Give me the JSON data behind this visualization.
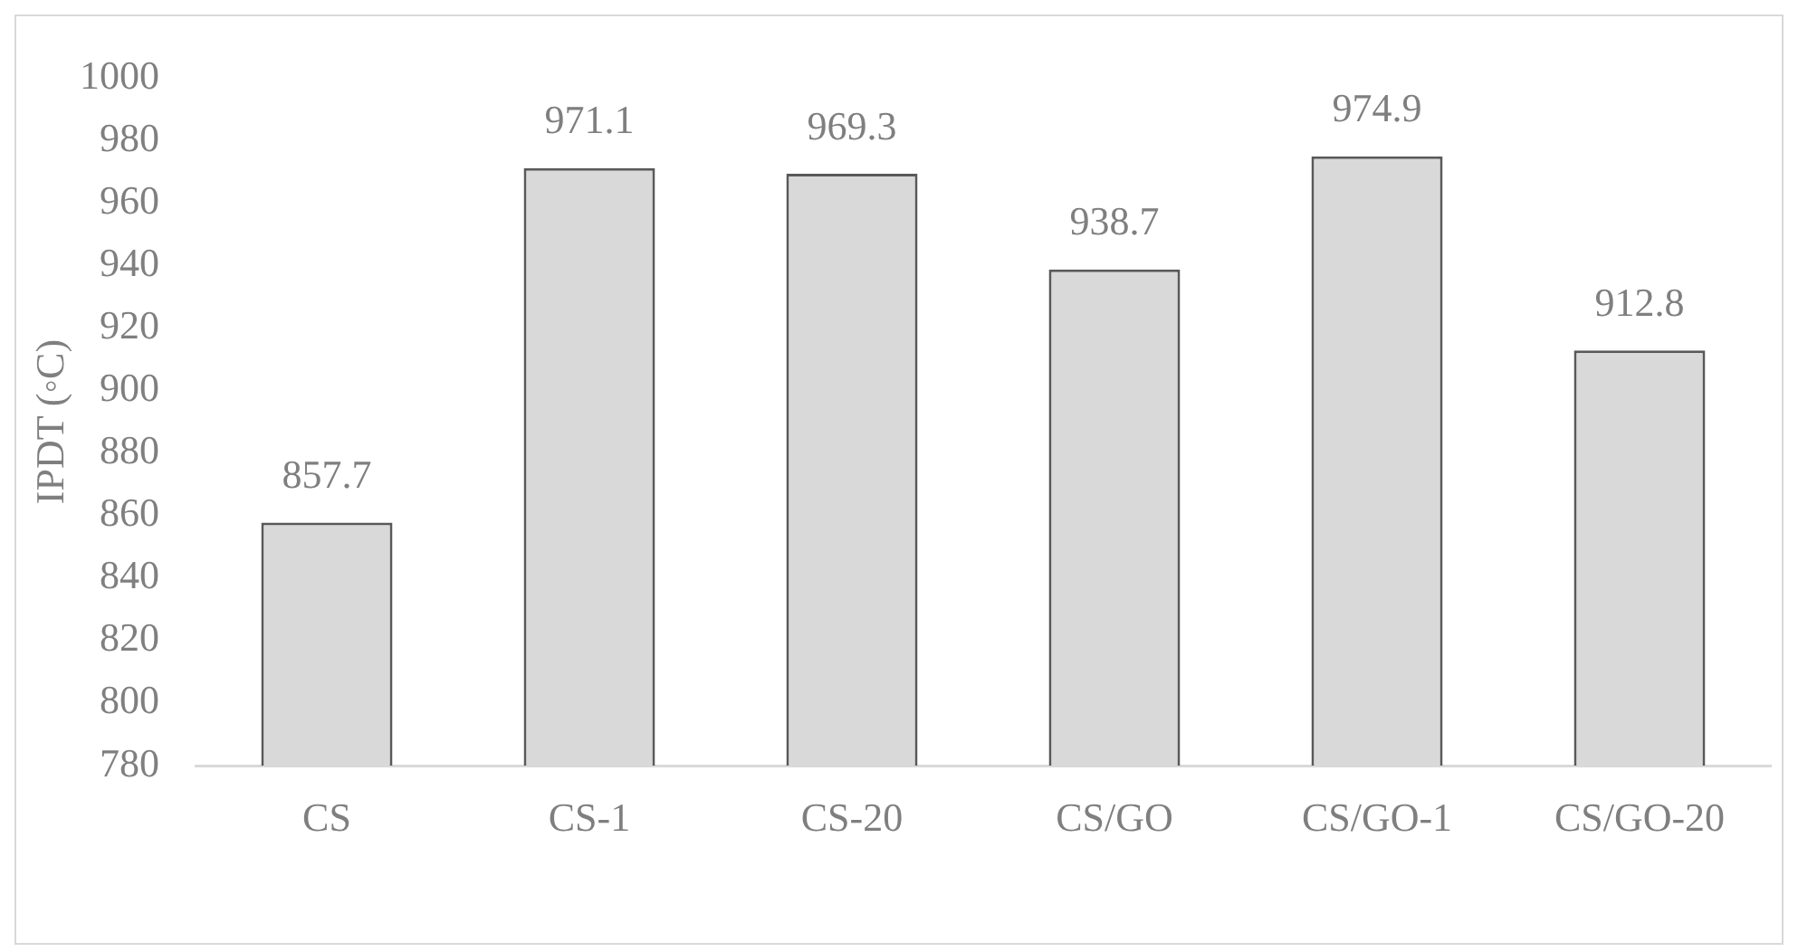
{
  "chart_data": {
    "type": "bar",
    "ylabel": "IPDT (◦C)",
    "categories": [
      "CS",
      "CS-1",
      "CS-20",
      "CS/GO",
      "CS/GO-1",
      "CS/GO-20"
    ],
    "values": [
      857.7,
      971.1,
      969.3,
      938.7,
      974.9,
      912.8
    ],
    "color": "#d9d9d9",
    "ylim": [
      780,
      1000
    ],
    "yticks": [
      780,
      800,
      820,
      840,
      860,
      880,
      900,
      920,
      940,
      960,
      980,
      1000
    ],
    "data_labels": true
  }
}
